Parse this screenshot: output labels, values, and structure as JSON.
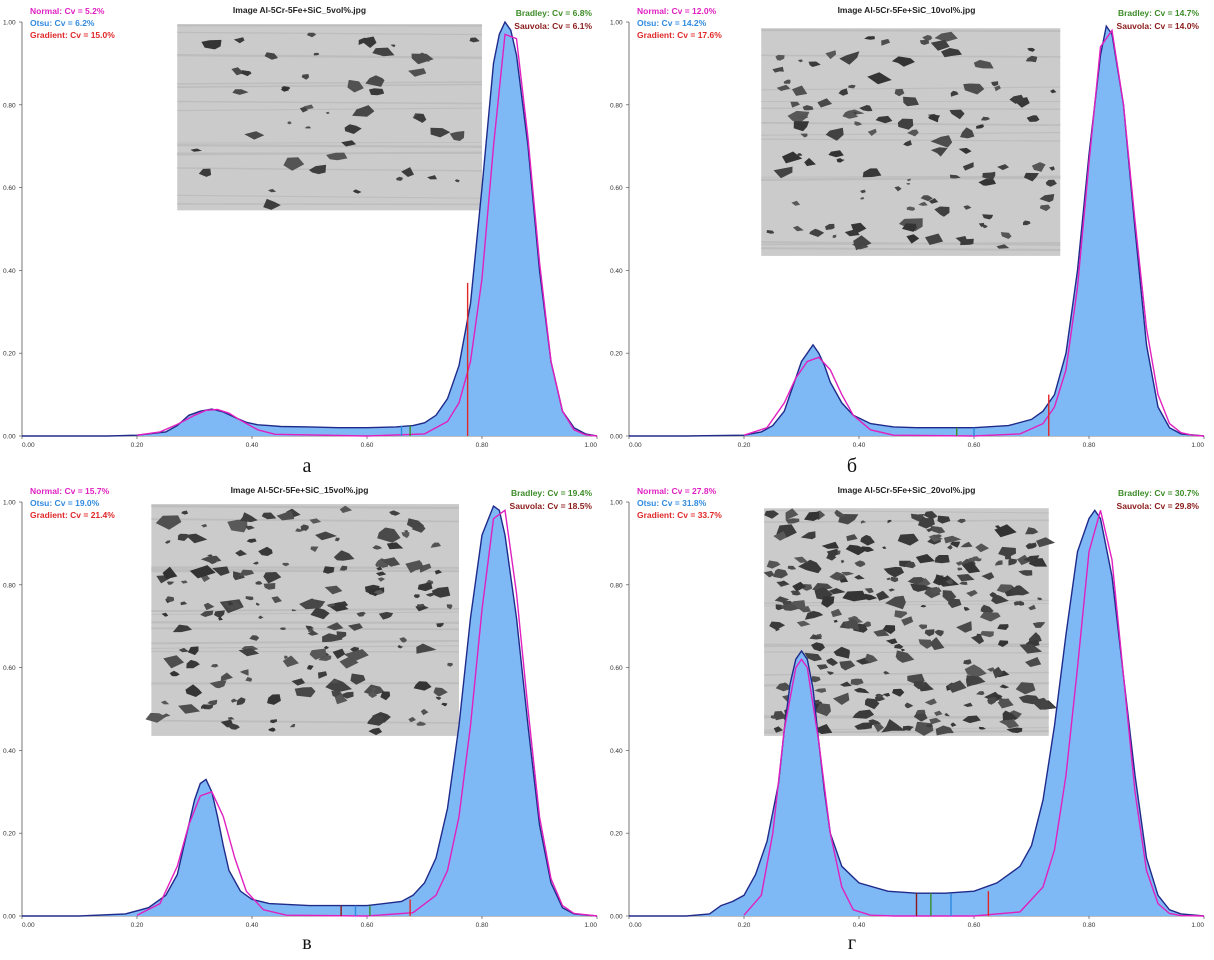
{
  "colors": {
    "hist_fill": "#7fb9f5",
    "hist_line": "#1f2a8a",
    "normal": "#e020c0",
    "otsu": "#2f8ae0",
    "gradient": "#e02828",
    "bradley": "#3c8c28",
    "sauvola": "#8b1a1a"
  },
  "chart_data": [
    {
      "type": "area",
      "caption": "а",
      "title": "Image Al-5Cr-5Fe+SiC_5vol%.jpg",
      "legend_left": [
        {
          "text": "Normal: Cv = 5.2%",
          "color_key": "normal"
        },
        {
          "text": "Otsu: Cv = 6.2%",
          "color_key": "otsu"
        },
        {
          "text": "Gradient: Cv = 15.0%",
          "color_key": "gradient"
        }
      ],
      "legend_right": [
        {
          "text": "Bradley: Cv = 6.8%",
          "color_key": "bradley"
        },
        {
          "text": "Sauvola: Cv = 6.1%",
          "color_key": "sauvola"
        }
      ],
      "xlim": [
        0,
        1
      ],
      "ylim": [
        0,
        1
      ],
      "xticks": [
        "0.00",
        "0.20",
        "0.40",
        "0.60",
        "0.80",
        "1.00"
      ],
      "yticks": [
        "0.00",
        "0.20",
        "0.40",
        "0.60",
        "0.80",
        "1.00"
      ],
      "histogram": {
        "x": [
          0.0,
          0.05,
          0.1,
          0.15,
          0.2,
          0.25,
          0.27,
          0.29,
          0.31,
          0.33,
          0.35,
          0.37,
          0.39,
          0.41,
          0.43,
          0.45,
          0.5,
          0.55,
          0.6,
          0.65,
          0.68,
          0.7,
          0.72,
          0.74,
          0.76,
          0.78,
          0.8,
          0.82,
          0.83,
          0.84,
          0.85,
          0.86,
          0.88,
          0.9,
          0.92,
          0.94,
          0.96,
          0.98,
          1.0
        ],
        "y": [
          0,
          0,
          0,
          0,
          0.002,
          0.01,
          0.025,
          0.05,
          0.06,
          0.065,
          0.058,
          0.045,
          0.033,
          0.027,
          0.025,
          0.023,
          0.022,
          0.02,
          0.02,
          0.022,
          0.025,
          0.032,
          0.05,
          0.09,
          0.17,
          0.32,
          0.6,
          0.9,
          0.97,
          1.0,
          0.98,
          0.92,
          0.7,
          0.4,
          0.18,
          0.06,
          0.02,
          0.005,
          0
        ]
      },
      "normal_fit": {
        "x": [
          0.2,
          0.24,
          0.27,
          0.3,
          0.32,
          0.34,
          0.36,
          0.38,
          0.41,
          0.44,
          0.6,
          0.7,
          0.74,
          0.76,
          0.78,
          0.8,
          0.82,
          0.84,
          0.86,
          0.88,
          0.9,
          0.92,
          0.94,
          0.96,
          0.98,
          1.0
        ],
        "y": [
          0.002,
          0.01,
          0.028,
          0.05,
          0.062,
          0.064,
          0.055,
          0.038,
          0.015,
          0.004,
          0,
          0.005,
          0.035,
          0.08,
          0.18,
          0.38,
          0.7,
          0.97,
          0.96,
          0.72,
          0.42,
          0.18,
          0.06,
          0.015,
          0.003,
          0
        ]
      },
      "thresholds": [
        {
          "method": "Gradient",
          "color_key": "gradient",
          "x": 0.775,
          "y": 0.37
        },
        {
          "method": "Otsu",
          "color_key": "otsu",
          "x": 0.66,
          "y": 0.025
        },
        {
          "method": "Bradley",
          "color_key": "bradley",
          "x": 0.675,
          "y": 0.025
        }
      ],
      "inset": {
        "x": 0.27,
        "y": 0.995,
        "w": 0.53,
        "h": 0.45,
        "density": 0.05
      }
    },
    {
      "type": "area",
      "caption": "б",
      "title": "Image Al-5Cr-5Fe+SiC_10vol%.jpg",
      "legend_left": [
        {
          "text": "Normal: Cv = 12.0%",
          "color_key": "normal"
        },
        {
          "text": "Otsu: Cv = 14.2%",
          "color_key": "otsu"
        },
        {
          "text": "Gradient: Cv = 17.6%",
          "color_key": "gradient"
        }
      ],
      "legend_right": [
        {
          "text": "Bradley: Cv = 14.7%",
          "color_key": "bradley"
        },
        {
          "text": "Sauvola: Cv = 14.0%",
          "color_key": "sauvola"
        }
      ],
      "xlim": [
        0,
        1
      ],
      "ylim": [
        0,
        1
      ],
      "xticks": [
        "0.00",
        "0.20",
        "0.40",
        "0.60",
        "0.80",
        "1.00"
      ],
      "yticks": [
        "0.00",
        "0.20",
        "0.40",
        "0.60",
        "0.80",
        "1.00"
      ],
      "histogram": {
        "x": [
          0.0,
          0.1,
          0.2,
          0.23,
          0.25,
          0.27,
          0.28,
          0.29,
          0.3,
          0.31,
          0.32,
          0.33,
          0.34,
          0.35,
          0.37,
          0.39,
          0.42,
          0.46,
          0.5,
          0.6,
          0.66,
          0.7,
          0.72,
          0.74,
          0.76,
          0.78,
          0.8,
          0.82,
          0.83,
          0.84,
          0.86,
          0.88,
          0.9,
          0.92,
          0.94,
          0.96,
          1.0
        ],
        "y": [
          0,
          0,
          0.002,
          0.01,
          0.025,
          0.06,
          0.1,
          0.14,
          0.18,
          0.2,
          0.22,
          0.2,
          0.17,
          0.13,
          0.08,
          0.05,
          0.03,
          0.022,
          0.02,
          0.02,
          0.025,
          0.04,
          0.06,
          0.1,
          0.2,
          0.4,
          0.68,
          0.92,
          0.99,
          0.97,
          0.8,
          0.5,
          0.22,
          0.07,
          0.02,
          0.005,
          0
        ]
      },
      "normal_fit": {
        "x": [
          0.2,
          0.24,
          0.27,
          0.29,
          0.31,
          0.33,
          0.35,
          0.37,
          0.39,
          0.42,
          0.46,
          0.6,
          0.68,
          0.72,
          0.74,
          0.76,
          0.78,
          0.8,
          0.82,
          0.84,
          0.86,
          0.88,
          0.9,
          0.92,
          0.94,
          0.96,
          0.98,
          1.0
        ],
        "y": [
          0.002,
          0.02,
          0.08,
          0.14,
          0.18,
          0.19,
          0.16,
          0.1,
          0.05,
          0.015,
          0.002,
          0,
          0.005,
          0.03,
          0.07,
          0.16,
          0.36,
          0.66,
          0.94,
          0.98,
          0.8,
          0.52,
          0.26,
          0.1,
          0.03,
          0.008,
          0.002,
          0
        ]
      },
      "thresholds": [
        {
          "method": "Gradient",
          "color_key": "gradient",
          "x": 0.73,
          "y": 0.1
        },
        {
          "method": "Otsu",
          "color_key": "otsu",
          "x": 0.6,
          "y": 0.02
        },
        {
          "method": "Bradley",
          "color_key": "bradley",
          "x": 0.57,
          "y": 0.02
        }
      ],
      "inset": {
        "x": 0.23,
        "y": 0.985,
        "w": 0.52,
        "h": 0.55,
        "density": 0.1
      }
    },
    {
      "type": "area",
      "caption": "в",
      "title": "Image Al-5Cr-5Fe+SiC_15vol%.jpg",
      "legend_left": [
        {
          "text": "Normal: Cv = 15.7%",
          "color_key": "normal"
        },
        {
          "text": "Otsu: Cv = 19.0%",
          "color_key": "otsu"
        },
        {
          "text": "Gradient: Cv = 21.4%",
          "color_key": "gradient"
        }
      ],
      "legend_right": [
        {
          "text": "Bradley: Cv = 19.4%",
          "color_key": "bradley"
        },
        {
          "text": "Sauvola: Cv = 18.5%",
          "color_key": "sauvola"
        }
      ],
      "xlim": [
        0,
        1
      ],
      "ylim": [
        0,
        1
      ],
      "xticks": [
        "0.00",
        "0.20",
        "0.40",
        "0.60",
        "0.80",
        "1.00"
      ],
      "yticks": [
        "0.00",
        "0.20",
        "0.40",
        "0.60",
        "0.80",
        "1.00"
      ],
      "histogram": {
        "x": [
          0.0,
          0.1,
          0.18,
          0.22,
          0.25,
          0.27,
          0.28,
          0.29,
          0.3,
          0.31,
          0.32,
          0.33,
          0.34,
          0.35,
          0.36,
          0.38,
          0.4,
          0.43,
          0.5,
          0.6,
          0.66,
          0.68,
          0.7,
          0.72,
          0.74,
          0.76,
          0.78,
          0.8,
          0.82,
          0.83,
          0.84,
          0.86,
          0.88,
          0.9,
          0.92,
          0.94,
          0.96,
          1.0
        ],
        "y": [
          0,
          0,
          0.005,
          0.02,
          0.05,
          0.1,
          0.16,
          0.22,
          0.28,
          0.32,
          0.33,
          0.3,
          0.24,
          0.17,
          0.11,
          0.06,
          0.04,
          0.03,
          0.025,
          0.025,
          0.035,
          0.05,
          0.08,
          0.14,
          0.26,
          0.46,
          0.72,
          0.92,
          0.99,
          0.98,
          0.92,
          0.72,
          0.46,
          0.22,
          0.08,
          0.02,
          0.005,
          0
        ]
      },
      "normal_fit": {
        "x": [
          0.2,
          0.24,
          0.27,
          0.29,
          0.31,
          0.33,
          0.35,
          0.37,
          0.39,
          0.42,
          0.46,
          0.6,
          0.68,
          0.72,
          0.74,
          0.76,
          0.78,
          0.8,
          0.82,
          0.84,
          0.86,
          0.88,
          0.9,
          0.92,
          0.94,
          0.96,
          1.0
        ],
        "y": [
          0.002,
          0.03,
          0.12,
          0.22,
          0.29,
          0.3,
          0.24,
          0.14,
          0.06,
          0.015,
          0.002,
          0,
          0.008,
          0.05,
          0.11,
          0.24,
          0.46,
          0.74,
          0.96,
          0.98,
          0.78,
          0.5,
          0.24,
          0.09,
          0.025,
          0.006,
          0
        ]
      },
      "thresholds": [
        {
          "method": "Gradient",
          "color_key": "gradient",
          "x": 0.675,
          "y": 0.04
        },
        {
          "method": "Bradley",
          "color_key": "bradley",
          "x": 0.605,
          "y": 0.025
        },
        {
          "method": "Otsu",
          "color_key": "otsu",
          "x": 0.58,
          "y": 0.025
        },
        {
          "method": "Sauvola",
          "color_key": "sauvola",
          "x": 0.555,
          "y": 0.025
        }
      ],
      "inset": {
        "x": 0.225,
        "y": 0.995,
        "w": 0.535,
        "h": 0.56,
        "density": 0.15
      }
    },
    {
      "type": "area",
      "caption": "г",
      "title": "Image Al-5Cr-5Fe+SiC_20vol%.jpg",
      "legend_left": [
        {
          "text": "Normal: Cv = 27.8%",
          "color_key": "normal"
        },
        {
          "text": "Otsu: Cv = 31.8%",
          "color_key": "otsu"
        },
        {
          "text": "Gradient: Cv = 33.7%",
          "color_key": "gradient"
        }
      ],
      "legend_right": [
        {
          "text": "Bradley: Cv = 30.7%",
          "color_key": "bradley"
        },
        {
          "text": "Sauvola: Cv = 29.8%",
          "color_key": "sauvola"
        }
      ],
      "xlim": [
        0,
        1
      ],
      "ylim": [
        0,
        1
      ],
      "xticks": [
        "0.00",
        "0.20",
        "0.40",
        "0.60",
        "0.80",
        "1.00"
      ],
      "yticks": [
        "0.00",
        "0.20",
        "0.40",
        "0.60",
        "0.80",
        "1.00"
      ],
      "histogram": {
        "x": [
          0.0,
          0.1,
          0.14,
          0.16,
          0.18,
          0.2,
          0.22,
          0.24,
          0.26,
          0.27,
          0.28,
          0.29,
          0.3,
          0.31,
          0.32,
          0.33,
          0.34,
          0.35,
          0.37,
          0.4,
          0.45,
          0.5,
          0.55,
          0.6,
          0.64,
          0.68,
          0.7,
          0.72,
          0.74,
          0.76,
          0.78,
          0.8,
          0.81,
          0.82,
          0.84,
          0.86,
          0.88,
          0.9,
          0.92,
          0.94,
          0.96,
          1.0
        ],
        "y": [
          0,
          0,
          0.005,
          0.025,
          0.035,
          0.05,
          0.1,
          0.18,
          0.32,
          0.45,
          0.56,
          0.62,
          0.64,
          0.62,
          0.55,
          0.42,
          0.3,
          0.2,
          0.12,
          0.08,
          0.06,
          0.055,
          0.055,
          0.06,
          0.08,
          0.12,
          0.17,
          0.28,
          0.46,
          0.68,
          0.88,
          0.96,
          0.98,
          0.96,
          0.82,
          0.58,
          0.34,
          0.14,
          0.05,
          0.015,
          0.005,
          0
        ]
      },
      "normal_fit": {
        "x": [
          0.2,
          0.23,
          0.25,
          0.27,
          0.29,
          0.3,
          0.31,
          0.33,
          0.35,
          0.37,
          0.39,
          0.42,
          0.46,
          0.6,
          0.68,
          0.72,
          0.74,
          0.76,
          0.78,
          0.8,
          0.82,
          0.84,
          0.86,
          0.88,
          0.9,
          0.92,
          0.94,
          0.96,
          1.0
        ],
        "y": [
          0.002,
          0.05,
          0.2,
          0.45,
          0.6,
          0.62,
          0.6,
          0.42,
          0.2,
          0.07,
          0.015,
          0.002,
          0,
          0,
          0.01,
          0.07,
          0.16,
          0.34,
          0.6,
          0.88,
          0.98,
          0.86,
          0.58,
          0.3,
          0.11,
          0.03,
          0.006,
          0.001,
          0
        ]
      },
      "thresholds": [
        {
          "method": "Gradient",
          "color_key": "gradient",
          "x": 0.625,
          "y": 0.06
        },
        {
          "method": "Otsu",
          "color_key": "otsu",
          "x": 0.56,
          "y": 0.055
        },
        {
          "method": "Bradley",
          "color_key": "bradley",
          "x": 0.525,
          "y": 0.055
        },
        {
          "method": "Sauvola",
          "color_key": "sauvola",
          "x": 0.5,
          "y": 0.055
        }
      ],
      "inset": {
        "x": 0.235,
        "y": 0.985,
        "w": 0.495,
        "h": 0.55,
        "density": 0.24
      }
    }
  ]
}
